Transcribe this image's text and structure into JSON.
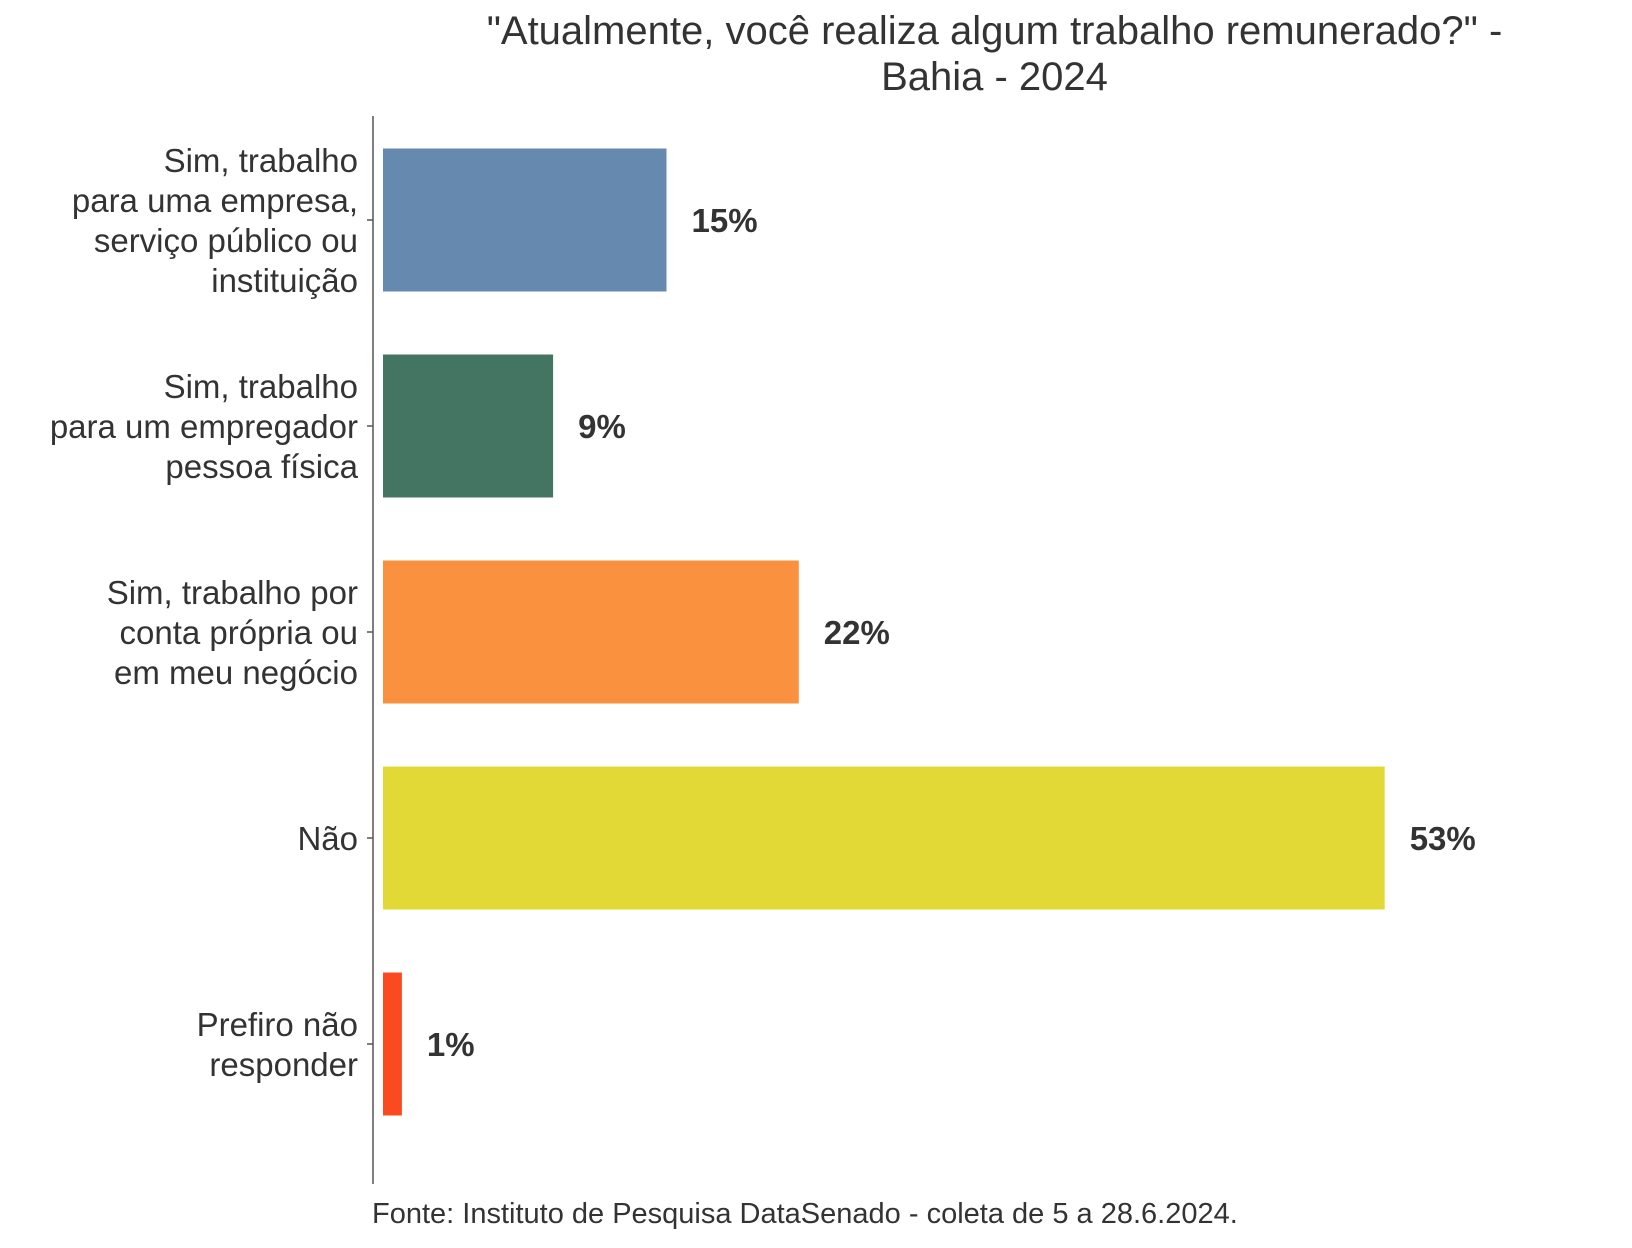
{
  "chart_data": {
    "type": "bar",
    "orientation": "horizontal",
    "title": "\"Atualmente, você realiza algum trabalho remunerado?\" - Bahia - 2024",
    "title_lines": [
      "\"Atualmente, você realiza algum trabalho remunerado?\" -",
      "Bahia - 2024"
    ],
    "xlabel": "",
    "ylabel": "",
    "grid": false,
    "legend": "none",
    "value_unit": "%",
    "xlim": [
      0,
      56
    ],
    "categories": [
      "Sim, trabalho para uma empresa, serviço público ou instituição",
      "Sim, trabalho para um empregador pessoa física",
      "Sim, trabalho por conta própria ou em meu negócio",
      "Não",
      "Prefiro não responder"
    ],
    "category_lines": [
      [
        "Sim, trabalho",
        "para uma empresa,",
        "serviço público ou",
        "instituição"
      ],
      [
        "Sim, trabalho",
        "para um empregador",
        "pessoa física"
      ],
      [
        "Sim, trabalho por",
        "conta própria ou",
        "em meu negócio"
      ],
      [
        "Não"
      ],
      [
        "Prefiro não",
        "responder"
      ]
    ],
    "values": [
      15,
      9,
      22,
      53,
      1
    ],
    "value_labels": [
      "15%",
      "9%",
      "22%",
      "53%",
      "1%"
    ],
    "colors": [
      "#6689B0",
      "#447563",
      "#F9913E",
      "#E3D936",
      "#FC4A20"
    ],
    "source": "Fonte: Instituto de Pesquisa DataSenado - coleta de 5 a 28.6.2024."
  }
}
